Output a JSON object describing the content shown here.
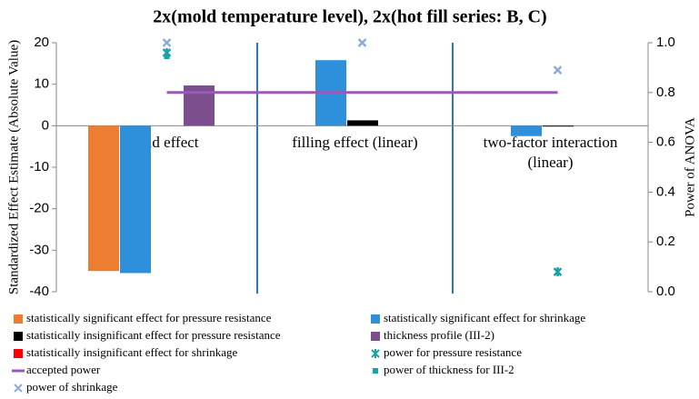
{
  "chart_data": {
    "type": "bar",
    "title": "2x(mold temperature level), 2x(hot fill series: B, C)",
    "y_label": "Standardized Effect Estimate (Absolute Value)",
    "y2_label": "Power of ANOVA",
    "categories": [
      "mould effect",
      "filling effect (linear)",
      "two-factor interaction (linear)"
    ],
    "ylim": [
      -40,
      20
    ],
    "yticks": [
      -40,
      -30,
      -20,
      -10,
      0,
      10,
      20
    ],
    "y2lim": [
      0,
      1
    ],
    "y2ticks": [
      {
        "value": 0,
        "label": "0.0"
      },
      0.2,
      0.4,
      0.6,
      0.8,
      {
        "value": 1,
        "label": "1.0"
      }
    ],
    "grid": false,
    "series": [
      {
        "name": "statistically significant effect for pressure resistance",
        "color": "#ED7D31",
        "marker": "bar",
        "values": [
          -35,
          null,
          null
        ]
      },
      {
        "name": "statistically significant effect for shrinkage",
        "color": "#2E8FDB",
        "marker": "bar",
        "values": [
          -35.5,
          15.8,
          -2.5
        ]
      },
      {
        "name": "statistically insignificant effect for pressure resistance",
        "color": "#000000",
        "marker": "bar",
        "values": [
          null,
          1.3,
          -0.2
        ]
      },
      {
        "name": "thickness profile (III-2)",
        "color": "#7B4F8E",
        "marker": "bar",
        "values": [
          9.7,
          null,
          null
        ]
      },
      {
        "name": "statistically insignificant effect for shrinkage",
        "color": "#FF0000",
        "marker": "bar",
        "values": [
          null,
          null,
          null
        ]
      },
      {
        "name": "power for pressure resistance",
        "color": "#17A2A8",
        "marker": "asterisk",
        "axis": "y2",
        "values": [
          0.96,
          null,
          0.08
        ]
      },
      {
        "name": "accepted power",
        "color": "#9B59B6",
        "marker": "line",
        "axis": "y2",
        "values": [
          0.8,
          0.8,
          0.8
        ]
      },
      {
        "name": "power of thickness for III-2",
        "color": "#17A2A8",
        "marker": "square",
        "axis": "y2",
        "values": [
          0.945,
          null,
          null
        ]
      },
      {
        "name": "power of shrinkage",
        "color": "#8EA9DB",
        "marker": "x",
        "axis": "y2",
        "values": [
          1,
          1,
          0.89
        ]
      }
    ]
  }
}
